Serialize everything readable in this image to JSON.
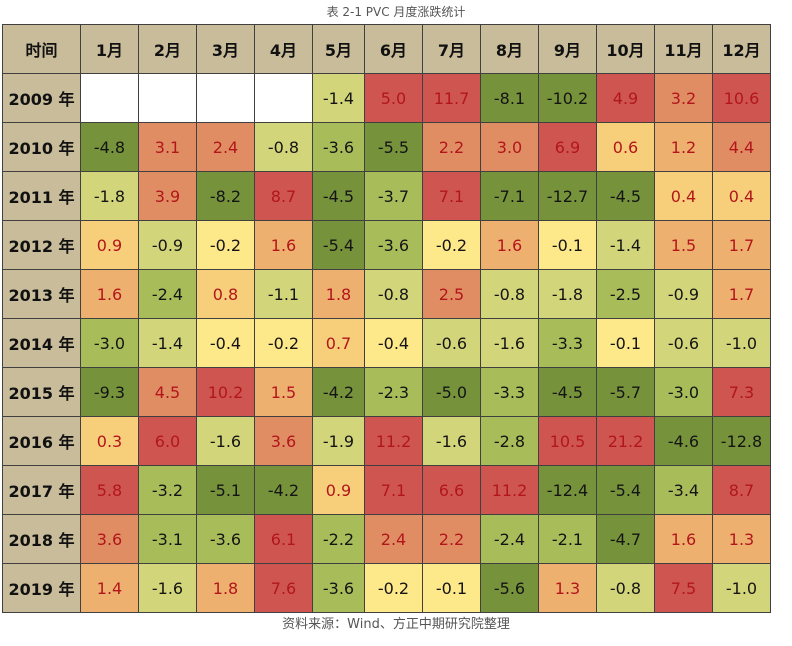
{
  "title": "表 2-1 PVC 月度涨跌统计",
  "source": "资料来源：Wind、方正中期研究院整理",
  "colors": {
    "header_bg": "#c8bc9a",
    "empty": "#ffffff",
    "positive_text": "#b2161c",
    "negative_text": "#141414"
  },
  "chart_data": {
    "type": "heatmap",
    "title": "表 2-1 PVC 月度涨跌统计",
    "corner_label": "时间",
    "columns": [
      "1月",
      "2月",
      "3月",
      "4月",
      "5月",
      "6月",
      "7月",
      "8月",
      "9月",
      "10月",
      "11月",
      "12月"
    ],
    "rows": [
      "2009 年",
      "2010 年",
      "2011 年",
      "2012 年",
      "2013 年",
      "2014 年",
      "2015 年",
      "2016 年",
      "2017 年",
      "2018 年",
      "2019 年"
    ],
    "values": [
      [
        null,
        null,
        null,
        null,
        -1.4,
        5.0,
        11.7,
        -8.1,
        -10.2,
        4.9,
        3.2,
        10.6
      ],
      [
        -4.8,
        3.1,
        2.4,
        -0.8,
        -3.6,
        -5.5,
        2.2,
        3.0,
        6.9,
        0.6,
        1.2,
        4.4
      ],
      [
        -1.8,
        3.9,
        -8.2,
        8.7,
        -4.5,
        -3.7,
        7.1,
        -7.1,
        -12.7,
        -4.5,
        0.4,
        0.4
      ],
      [
        0.9,
        -0.9,
        -0.2,
        1.6,
        -5.4,
        -3.6,
        -0.2,
        1.6,
        -0.1,
        -1.4,
        1.5,
        1.7
      ],
      [
        1.6,
        -2.4,
        0.8,
        -1.1,
        1.8,
        -0.8,
        2.5,
        -0.8,
        -1.8,
        -2.5,
        -0.9,
        1.7
      ],
      [
        -3.0,
        -1.4,
        -0.4,
        -0.2,
        0.7,
        -0.4,
        -0.6,
        -1.6,
        -3.3,
        -0.1,
        -0.6,
        -1.0
      ],
      [
        -9.3,
        4.5,
        10.2,
        1.5,
        -4.2,
        -2.3,
        -5.0,
        -3.3,
        -4.5,
        -5.7,
        -3.0,
        7.3
      ],
      [
        0.3,
        6.0,
        -1.6,
        3.6,
        -1.9,
        11.2,
        -1.6,
        -2.8,
        10.5,
        21.2,
        -4.6,
        -12.8
      ],
      [
        5.8,
        -3.2,
        -5.1,
        -4.2,
        0.9,
        7.1,
        6.6,
        11.2,
        -12.4,
        -5.4,
        -3.4,
        8.7
      ],
      [
        3.6,
        -3.1,
        -3.6,
        6.1,
        -2.2,
        2.4,
        2.2,
        -2.4,
        -2.1,
        -4.7,
        1.6,
        1.3
      ],
      [
        1.4,
        -1.6,
        1.8,
        7.6,
        -3.6,
        -0.2,
        -0.1,
        -5.6,
        1.3,
        -0.8,
        7.5,
        -1.0
      ]
    ],
    "color_scale": [
      {
        "max": -4.0,
        "color": "#76933c"
      },
      {
        "max": -2.0,
        "color": "#a9bc5a"
      },
      {
        "max": -0.5,
        "color": "#d3d57a"
      },
      {
        "max": 0.0,
        "color": "#fde88a"
      },
      {
        "max": 1.0,
        "color": "#f7ce7a"
      },
      {
        "max": 2.0,
        "color": "#eeb06f"
      },
      {
        "max": 4.5,
        "color": "#e08d63"
      },
      {
        "max": 999,
        "color": "#cf5650"
      }
    ]
  }
}
